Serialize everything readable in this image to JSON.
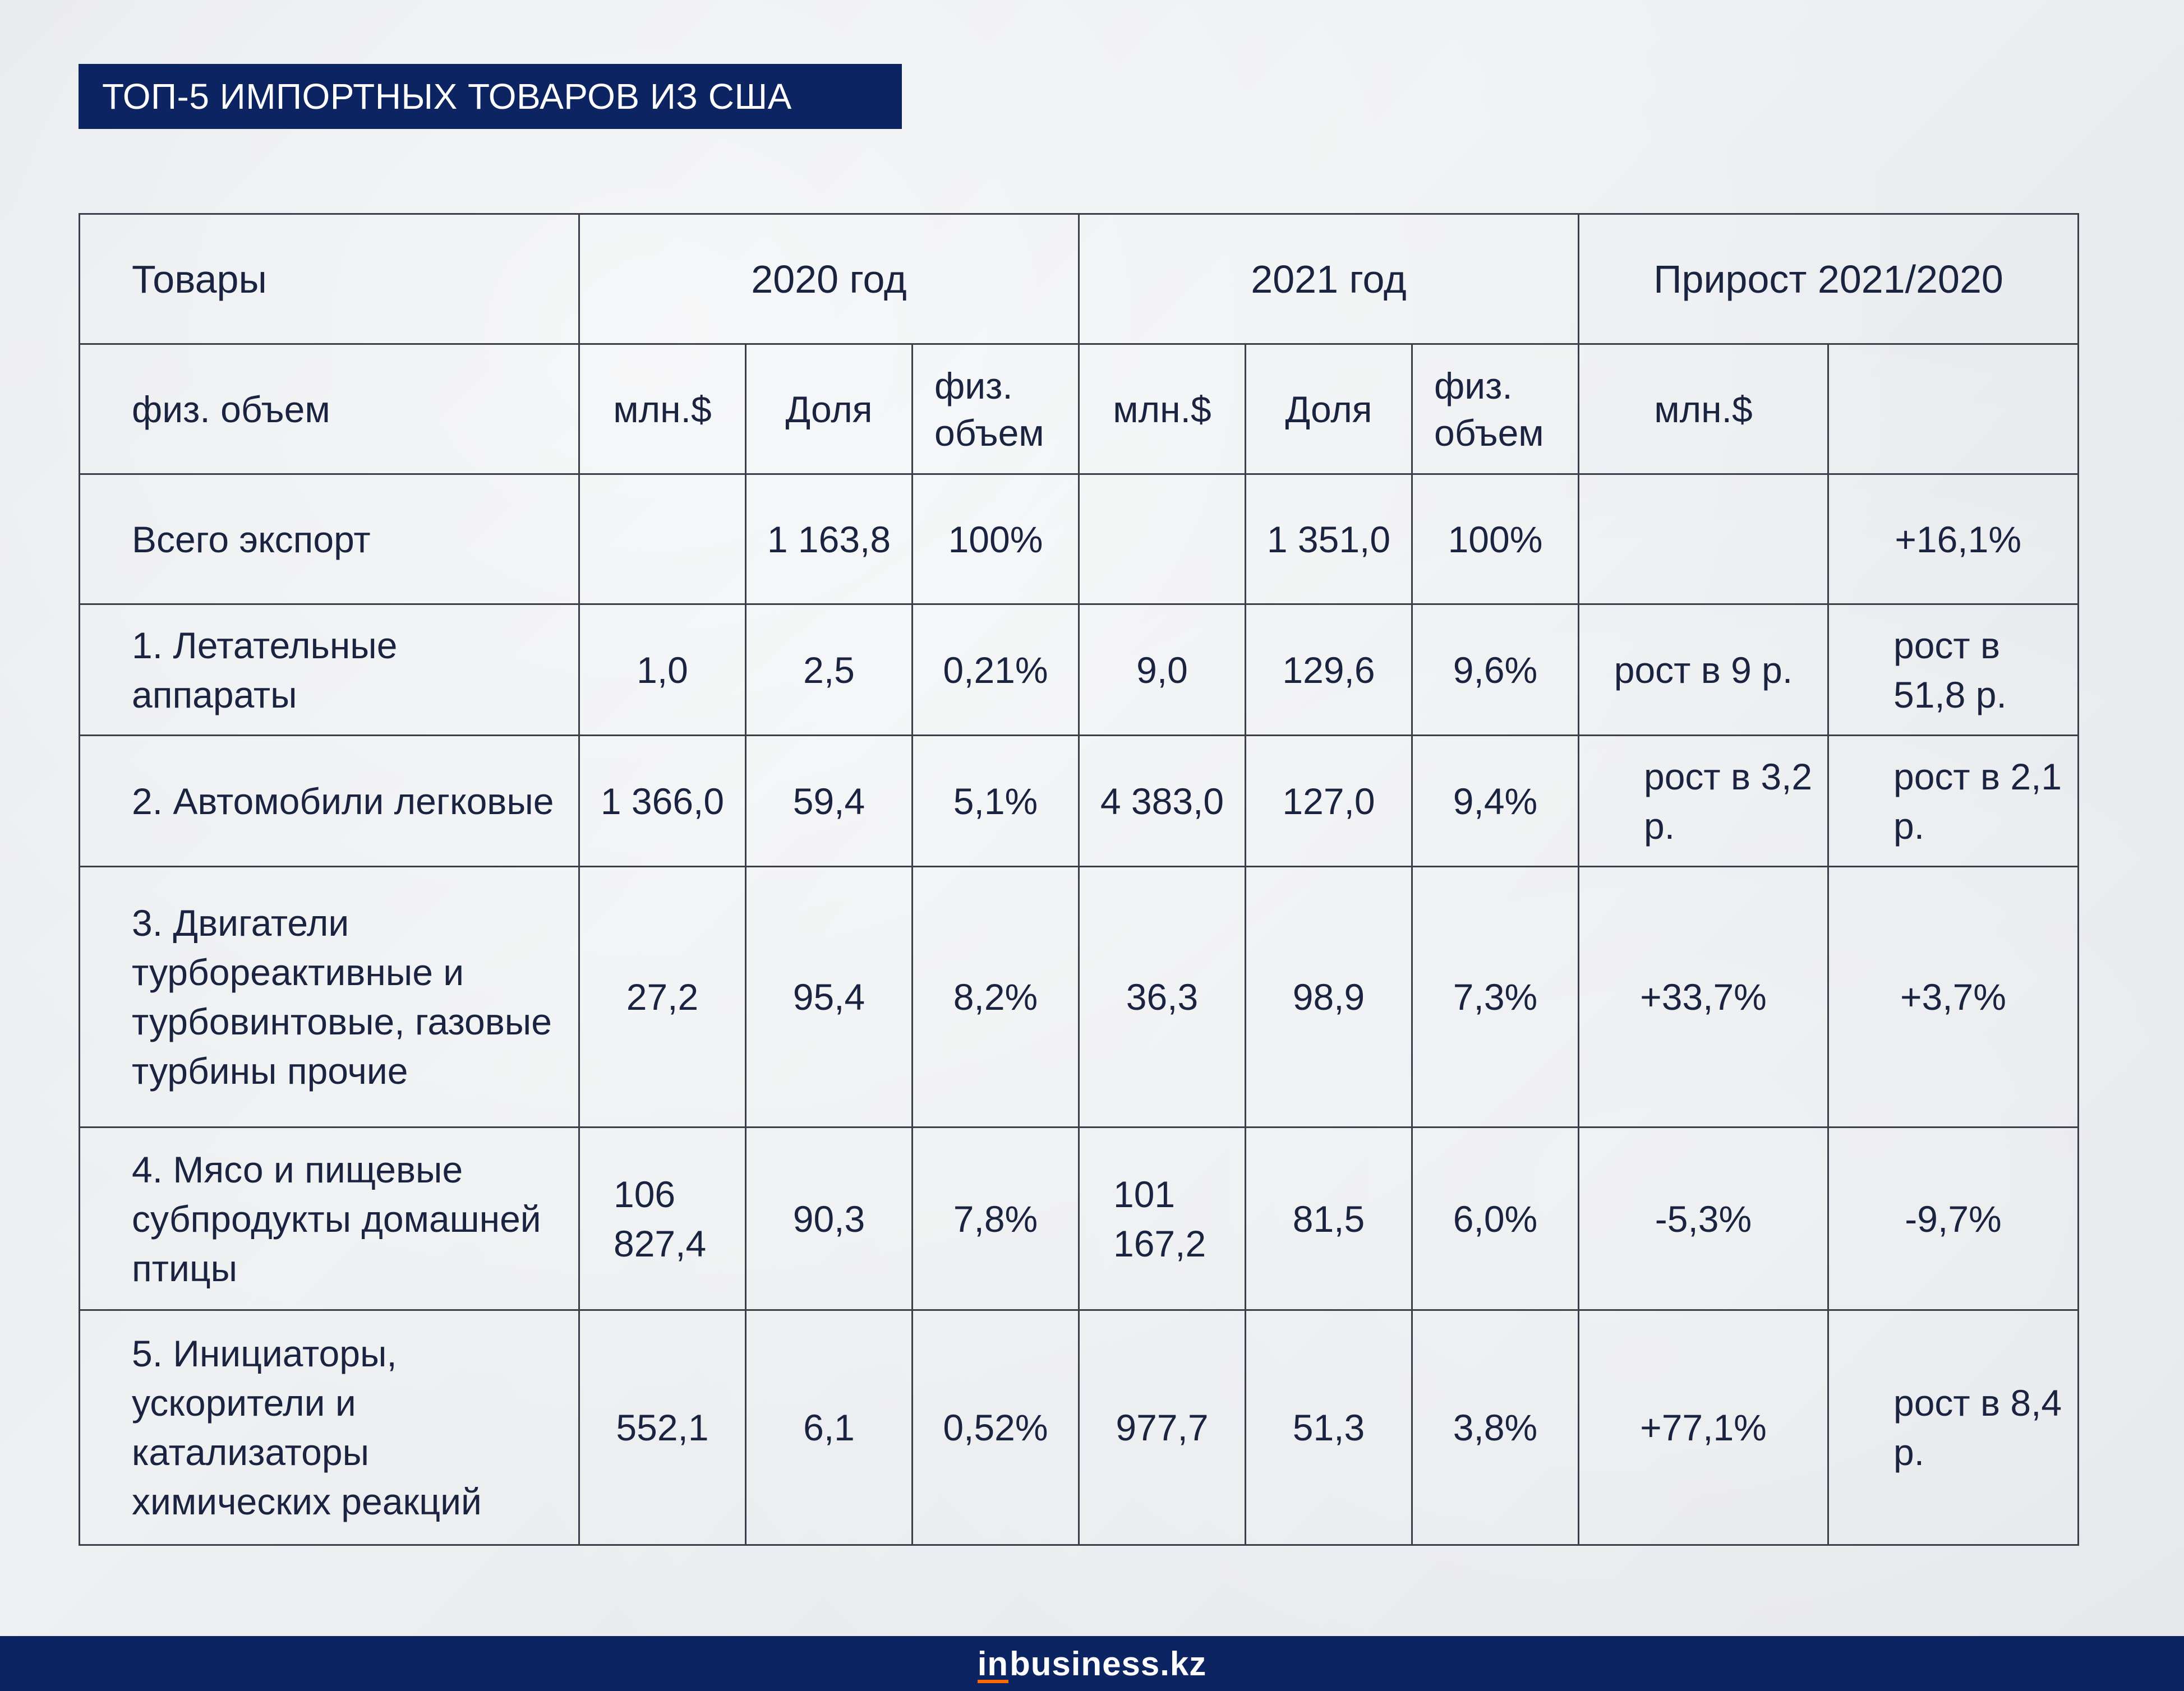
{
  "title": "ТОП-5 ИМПОРТНЫХ ТОВАРОВ ИЗ США",
  "table": {
    "header": {
      "goods": "Товары",
      "year2020": "2020 год",
      "year2021": "2021 год",
      "growth": "Прирост 2021/2020"
    },
    "subheader": {
      "goods": "физ. объем",
      "usd2020": "млн.$",
      "share2020": "Доля",
      "phys2020": "физ. объем",
      "usd2021": "млн.$",
      "share2021": "Доля",
      "phys2021": "физ. объем",
      "growth_usd": "млн.$",
      "growth_other": ""
    },
    "total": {
      "label": "Всего экспорт",
      "phys2020": "",
      "usd2020": "1 163,8",
      "share2020": "100%",
      "phys2021": "",
      "usd2021": "1 351,0",
      "share2021": "100%",
      "growth_phys": "",
      "growth_usd": "+16,1%"
    },
    "rows": [
      {
        "label": "1. Летательные аппараты",
        "c1": "1,0",
        "c2": "2,5",
        "c3": "0,21%",
        "c4": "9,0",
        "c5": "129,6",
        "c6": "9,6%",
        "c7": "рост в 9 р.",
        "c8": "рост в 51,8 р."
      },
      {
        "label": "2. Автомобили легковые",
        "c1": "1 366,0",
        "c2": "59,4",
        "c3": "5,1%",
        "c4": "4 383,0",
        "c5": "127,0",
        "c6": "9,4%",
        "c7": "рост в 3,2 р.",
        "c8": "рост в 2,1 р."
      },
      {
        "label": "3. Двигатели турбореактивные и турбовинтовые, газовые турбины прочие",
        "c1": "27,2",
        "c2": "95,4",
        "c3": "8,2%",
        "c4": "36,3",
        "c5": "98,9",
        "c6": "7,3%",
        "c7": "+33,7%",
        "c8": "+3,7%"
      },
      {
        "label": "4. Мясо и пищевые субпродукты домашней птицы",
        "c1": "106 827,4",
        "c2": "90,3",
        "c3": "7,8%",
        "c4": "101 167,2",
        "c5": "81,5",
        "c6": "6,0%",
        "c7": "-5,3%",
        "c8": "-9,7%"
      },
      {
        "label": "5. Инициаторы, ускорители и катализаторы химических реакций",
        "c1": "552,1",
        "c2": "6,1",
        "c3": "0,52%",
        "c4": "977,7",
        "c5": "51,3",
        "c6": "3,8%",
        "c7": "+77,1%",
        "c8": "рост в 8,4 р."
      }
    ]
  },
  "footer": {
    "logo_in": "in",
    "logo_rest": "business.kz",
    "accent_color": "#ff6a00",
    "brand_color": "#0d2462"
  }
}
